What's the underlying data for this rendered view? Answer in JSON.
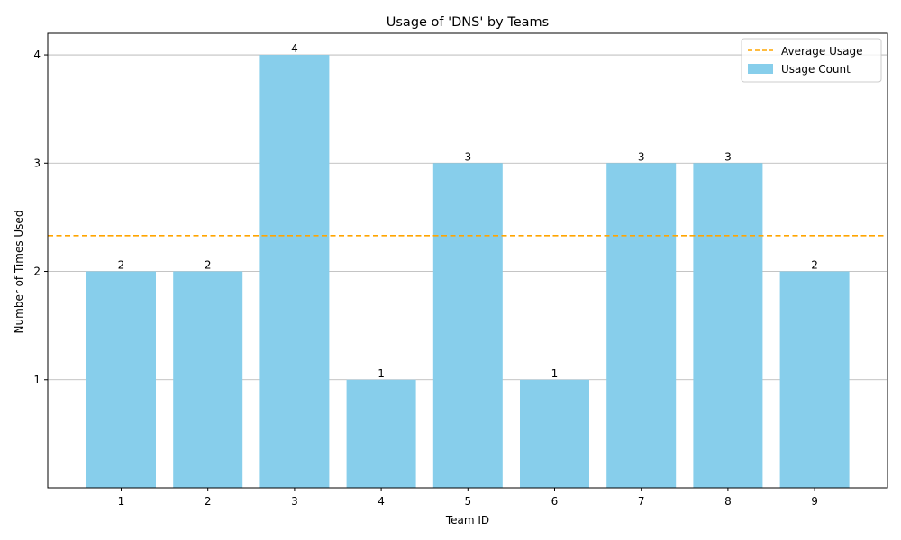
{
  "chart_data": {
    "type": "bar",
    "title": "Usage of 'DNS' by Teams",
    "xlabel": "Team ID",
    "ylabel": "Number of Times Used",
    "categories": [
      "1",
      "2",
      "3",
      "4",
      "5",
      "6",
      "7",
      "8",
      "9"
    ],
    "series": [
      {
        "name": "Usage Count",
        "values": [
          2,
          2,
          4,
          1,
          3,
          1,
          3,
          3,
          2
        ],
        "color": "#87ceeb"
      }
    ],
    "average_line": {
      "name": "Average Usage",
      "value": 2.33,
      "color": "#ffa500",
      "style": "dashed"
    },
    "yticks": [
      1,
      2,
      3,
      4
    ],
    "ylim": [
      0,
      4.2
    ],
    "grid": "y",
    "legend": "top-right"
  }
}
